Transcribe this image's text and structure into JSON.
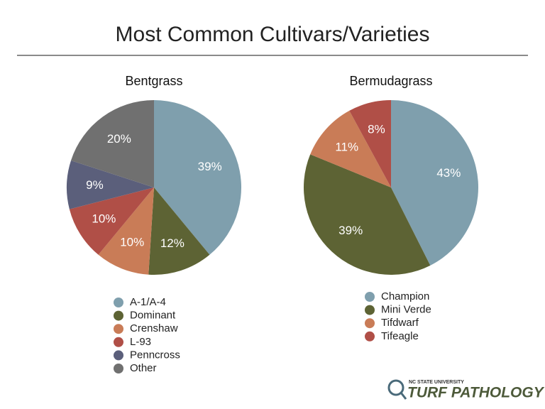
{
  "title": "Most Common Cultivars/Varieties",
  "logo": {
    "university": "NC STATE UNIVERSITY",
    "name": "TURF PATHOLOGY"
  },
  "chart_data": [
    {
      "type": "pie",
      "title": "Bentgrass",
      "categories": [
        "A-1/A-4",
        "Dominant",
        "Crenshaw",
        "L-93",
        "Penncross",
        "Other"
      ],
      "values": [
        39,
        12,
        10,
        10,
        9,
        20
      ],
      "value_labels": [
        "39%",
        "12%",
        "10%",
        "10%",
        "9%",
        "20%"
      ],
      "colors": [
        "#7f9fad",
        "#5d6334",
        "#c97c57",
        "#b04f47",
        "#5b5f7b",
        "#707070"
      ]
    },
    {
      "type": "pie",
      "title": "Bermudagrass",
      "categories": [
        "Champion",
        "Mini Verde",
        "Tifdwarf",
        "Tifeagle"
      ],
      "values": [
        43,
        39,
        11,
        8
      ],
      "value_labels": [
        "43%",
        "39%",
        "11%",
        "8%"
      ],
      "colors": [
        "#7f9fad",
        "#5d6334",
        "#c97c57",
        "#b04f47"
      ]
    }
  ]
}
